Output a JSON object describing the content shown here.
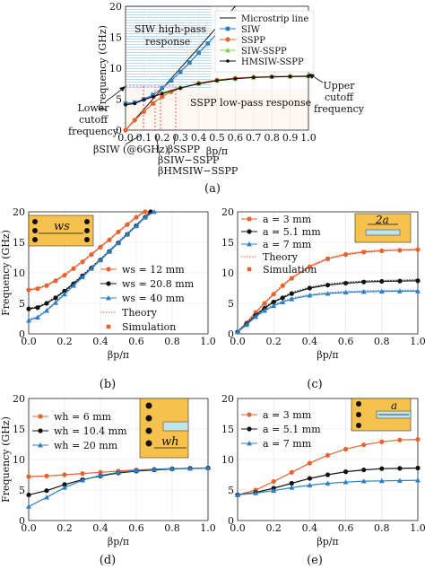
{
  "colors": {
    "orange": "#e8622d",
    "black": "#111111",
    "blue": "#2c7fc4",
    "green": "#7fd44b",
    "patch": "#f6c24d",
    "slot": "#bfe3ea",
    "hatch": "#bcd9f0",
    "guide": "#d93a3a"
  },
  "panels": {
    "a": {
      "caption": "(a)",
      "xlabel": "βp/π",
      "ylabel": "Frequency (GHz)",
      "xticks": [
        "0.0",
        "0.1",
        "0.2",
        "0.3",
        "0.4",
        "0.5",
        "0.6",
        "0.7",
        "0.8",
        "0.9",
        "1.0"
      ],
      "yticks": [
        "0",
        "5",
        "10",
        "15",
        "20"
      ],
      "ann": {
        "siw_region": [
          "SIW high-pass",
          "response"
        ],
        "sspp_region": "SSPP low-pass response",
        "lower_cutoff": [
          "Lower",
          "cutoff",
          "frequency"
        ],
        "upper_cutoff": [
          "Upper",
          "cutoff",
          "frequency"
        ],
        "beta_siw": "βSIW (@6GHz)",
        "beta_sspp": "βSSPP",
        "beta_siw_sspp": "βSIW−SSPP",
        "beta_hmsiw_sspp": "βHMSIW−SSPP"
      },
      "legend": [
        "Microstrip line",
        "SIW",
        "SSPP",
        "SIW-SSPP",
        "HMSIW-SSPP"
      ]
    },
    "b": {
      "caption": "(b)",
      "xlabel": "βp/π",
      "ylabel": "Frequency (GHz)",
      "xticks": [
        "0.0",
        "0.2",
        "0.4",
        "0.6",
        "0.8",
        "1.0"
      ],
      "yticks": [
        "0",
        "5",
        "10",
        "15",
        "20"
      ],
      "legend": [
        "ws = 12 mm",
        "ws = 20.8 mm",
        "ws = 40 mm",
        "Theory",
        "Simulation"
      ],
      "inset_label": "ws"
    },
    "c": {
      "caption": "(c)",
      "xlabel": "βp/π",
      "xticks": [
        "0.0",
        "0.2",
        "0.4",
        "0.6",
        "0.8",
        "1.0"
      ],
      "yticks": [
        "0",
        "5",
        "10",
        "15",
        "20"
      ],
      "legend": [
        "a = 3 mm",
        "a = 5.1 mm",
        "a = 7 mm",
        "Theory",
        "Simulation"
      ],
      "inset_label": "2a"
    },
    "d": {
      "caption": "(d)",
      "xlabel": "βp/π",
      "ylabel": "Frequency (GHz)",
      "xticks": [
        "0.0",
        "0.2",
        "0.4",
        "0.6",
        "0.8",
        "1.0"
      ],
      "yticks": [
        "0",
        "5",
        "10",
        "15",
        "20"
      ],
      "legend": [
        "wh = 6 mm",
        "wh = 10.4 mm",
        "wh = 20 mm"
      ],
      "inset_label": "wh"
    },
    "e": {
      "caption": "(e)",
      "xlabel": "βp/π",
      "xticks": [
        "0.0",
        "0.2",
        "0.4",
        "0.6",
        "0.8",
        "1.0"
      ],
      "yticks": [
        "0",
        "5",
        "10",
        "15",
        "20"
      ],
      "legend": [
        "a = 3 mm",
        "a = 5.1 mm",
        "a = 7 mm"
      ],
      "inset_label": "a"
    }
  },
  "chart_data": [
    {
      "panel": "a",
      "type": "line",
      "xlim": [
        0,
        1
      ],
      "ylim": [
        0,
        20
      ],
      "xlabel": "βp/π",
      "ylabel": "Frequency (GHz)",
      "series": [
        {
          "name": "Microstrip line",
          "color": "#111111",
          "x": [
            0,
            0.2,
            0.4,
            0.57,
            0.6
          ],
          "y": [
            0,
            6.7,
            13.3,
            19,
            20
          ]
        },
        {
          "name": "SIW",
          "color": "#2c7fc4",
          "x": [
            0,
            0.05,
            0.1,
            0.15,
            0.2,
            0.25,
            0.3,
            0.35,
            0.4,
            0.45,
            0.5,
            0.55,
            0.6
          ],
          "y": [
            4.3,
            4.45,
            5.0,
            5.7,
            6.8,
            8.0,
            9.4,
            10.9,
            12.5,
            14.0,
            15.6,
            17.3,
            19.0
          ]
        },
        {
          "name": "SSPP",
          "color": "#e8622d",
          "x": [
            0,
            0.05,
            0.1,
            0.15,
            0.2,
            0.25,
            0.3,
            0.4,
            0.5,
            0.6,
            0.7,
            0.8,
            0.9,
            1.0
          ],
          "y": [
            0,
            1.6,
            3.0,
            4.3,
            5.4,
            6.2,
            6.8,
            7.6,
            8.1,
            8.4,
            8.55,
            8.65,
            8.7,
            8.7
          ]
        },
        {
          "name": "SIW-SSPP",
          "color": "#7fd44b",
          "x": [
            0.2,
            0.3,
            0.4,
            0.5,
            0.6,
            0.7,
            0.8,
            0.9,
            1.0
          ],
          "y": [
            6.0,
            6.9,
            7.5,
            8.0,
            8.3,
            8.5,
            8.6,
            8.65,
            8.7
          ]
        },
        {
          "name": "HMSIW-SSPP",
          "color": "#111111",
          "x": [
            0,
            0.05,
            0.1,
            0.15,
            0.2,
            0.3,
            0.4,
            0.5,
            0.6,
            0.7,
            0.8,
            0.9,
            1.0
          ],
          "y": [
            4.1,
            4.3,
            4.9,
            5.4,
            5.9,
            6.8,
            7.5,
            8.0,
            8.3,
            8.5,
            8.6,
            8.65,
            8.7
          ]
        }
      ]
    },
    {
      "panel": "b",
      "type": "line",
      "xlim": [
        0,
        1
      ],
      "ylim": [
        0,
        20
      ],
      "xlabel": "βp/π",
      "ylabel": "Frequency (GHz)",
      "series": [
        {
          "name": "ws = 12 mm",
          "color": "#e8622d",
          "x": [
            0,
            0.05,
            0.1,
            0.15,
            0.2,
            0.25,
            0.3,
            0.35,
            0.4,
            0.45,
            0.5,
            0.55,
            0.6,
            0.65
          ],
          "y": [
            7.2,
            7.4,
            7.9,
            8.7,
            9.6,
            10.7,
            11.8,
            13.0,
            14.2,
            15.4,
            16.7,
            17.9,
            19.1,
            20.0
          ]
        },
        {
          "name": "ws = 20.8 mm",
          "color": "#111111",
          "x": [
            0,
            0.05,
            0.1,
            0.15,
            0.2,
            0.25,
            0.3,
            0.35,
            0.4,
            0.45,
            0.5,
            0.55,
            0.6,
            0.65,
            0.68
          ],
          "y": [
            4.1,
            4.3,
            5.0,
            5.9,
            7.0,
            8.2,
            9.5,
            10.8,
            12.1,
            13.5,
            14.9,
            16.3,
            17.7,
            19.1,
            20.0
          ]
        },
        {
          "name": "ws = 40 mm",
          "color": "#2c7fc4",
          "x": [
            0,
            0.05,
            0.1,
            0.15,
            0.2,
            0.25,
            0.3,
            0.35,
            0.4,
            0.45,
            0.5,
            0.55,
            0.6,
            0.65,
            0.7
          ],
          "y": [
            2.2,
            2.7,
            3.8,
            5.1,
            6.5,
            7.9,
            9.3,
            10.7,
            12.1,
            13.5,
            14.9,
            16.3,
            17.7,
            19.1,
            20.0
          ]
        }
      ]
    },
    {
      "panel": "c",
      "type": "line",
      "xlim": [
        0,
        1
      ],
      "ylim": [
        0,
        20
      ],
      "xlabel": "βp/π",
      "series": [
        {
          "name": "a = 3 mm",
          "color": "#e8622d",
          "x": [
            0,
            0.05,
            0.1,
            0.15,
            0.2,
            0.25,
            0.3,
            0.4,
            0.5,
            0.6,
            0.7,
            0.8,
            0.9,
            1.0
          ],
          "y": [
            0.3,
            1.8,
            3.5,
            5.0,
            6.5,
            7.9,
            9.1,
            11.0,
            12.3,
            13.0,
            13.4,
            13.6,
            13.7,
            13.8
          ]
        },
        {
          "name": "a = 5.1 mm",
          "color": "#111111",
          "x": [
            0,
            0.05,
            0.1,
            0.15,
            0.2,
            0.25,
            0.3,
            0.4,
            0.5,
            0.6,
            0.7,
            0.8,
            0.9,
            1.0
          ],
          "y": [
            0.3,
            1.6,
            3.0,
            4.2,
            5.2,
            5.9,
            6.6,
            7.5,
            8.0,
            8.3,
            8.5,
            8.6,
            8.65,
            8.7
          ]
        },
        {
          "name": "a = 7 mm",
          "color": "#2c7fc4",
          "x": [
            0,
            0.05,
            0.1,
            0.15,
            0.2,
            0.25,
            0.3,
            0.4,
            0.5,
            0.6,
            0.7,
            0.8,
            0.9,
            1.0
          ],
          "y": [
            0.3,
            1.5,
            2.8,
            3.8,
            4.6,
            5.2,
            5.7,
            6.3,
            6.6,
            6.8,
            6.9,
            6.95,
            7.0,
            7.0
          ]
        }
      ]
    },
    {
      "panel": "d",
      "type": "line",
      "xlim": [
        0,
        1
      ],
      "ylim": [
        0,
        20
      ],
      "xlabel": "βp/π",
      "ylabel": "Frequency (GHz)",
      "series": [
        {
          "name": "wh = 6 mm",
          "color": "#e8622d",
          "x": [
            0,
            0.1,
            0.2,
            0.3,
            0.4,
            0.5,
            0.6,
            0.7,
            0.8,
            0.9,
            1.0
          ],
          "y": [
            7.2,
            7.3,
            7.5,
            7.7,
            7.9,
            8.1,
            8.3,
            8.4,
            8.5,
            8.55,
            8.6
          ]
        },
        {
          "name": "wh = 10.4 mm",
          "color": "#111111",
          "x": [
            0,
            0.1,
            0.2,
            0.3,
            0.4,
            0.5,
            0.6,
            0.7,
            0.8,
            0.9,
            1.0
          ],
          "y": [
            4.2,
            4.9,
            5.9,
            6.7,
            7.3,
            7.8,
            8.1,
            8.3,
            8.45,
            8.55,
            8.6
          ]
        },
        {
          "name": "wh = 20 mm",
          "color": "#2c7fc4",
          "x": [
            0,
            0.1,
            0.2,
            0.3,
            0.4,
            0.5,
            0.6,
            0.7,
            0.8,
            0.9,
            1.0
          ],
          "y": [
            2.3,
            3.8,
            5.4,
            6.6,
            7.4,
            7.9,
            8.2,
            8.4,
            8.5,
            8.55,
            8.6
          ]
        }
      ]
    },
    {
      "panel": "e",
      "type": "line",
      "xlim": [
        0,
        1
      ],
      "ylim": [
        0,
        20
      ],
      "xlabel": "βp/π",
      "series": [
        {
          "name": "a = 3 mm",
          "color": "#e8622d",
          "x": [
            0,
            0.1,
            0.2,
            0.3,
            0.4,
            0.5,
            0.6,
            0.7,
            0.8,
            0.9,
            1.0
          ],
          "y": [
            4.2,
            5.0,
            6.4,
            7.9,
            9.4,
            10.7,
            11.7,
            12.4,
            12.9,
            13.2,
            13.3
          ]
        },
        {
          "name": "a = 5.1 mm",
          "color": "#111111",
          "x": [
            0,
            0.1,
            0.2,
            0.3,
            0.4,
            0.5,
            0.6,
            0.7,
            0.8,
            0.9,
            1.0
          ],
          "y": [
            4.2,
            4.6,
            5.3,
            6.1,
            6.9,
            7.5,
            8.0,
            8.3,
            8.5,
            8.55,
            8.6
          ]
        },
        {
          "name": "a = 7 mm",
          "color": "#2c7fc4",
          "x": [
            0,
            0.1,
            0.2,
            0.3,
            0.4,
            0.5,
            0.6,
            0.7,
            0.8,
            0.9,
            1.0
          ],
          "y": [
            4.2,
            4.5,
            4.9,
            5.4,
            5.8,
            6.1,
            6.3,
            6.45,
            6.5,
            6.55,
            6.6
          ]
        }
      ]
    }
  ]
}
